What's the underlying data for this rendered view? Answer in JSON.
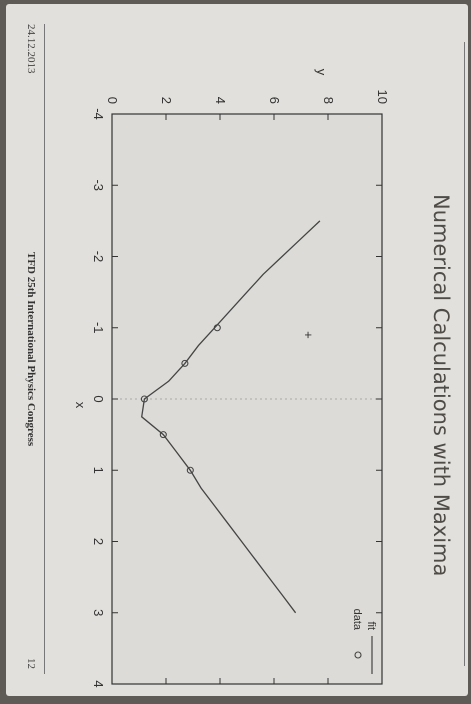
{
  "slide": {
    "title": "Numerical Calculations with Maxima",
    "footer_date": "24.12.2013",
    "footer_center": "TFD 25th International Physics Congress",
    "page_number": "12"
  },
  "chart_data": {
    "type": "scatter",
    "title": "",
    "xlabel": "x",
    "ylabel": "y",
    "xlim": [
      -4,
      4
    ],
    "ylim": [
      0,
      10
    ],
    "x_ticks": [
      "-4",
      "-3",
      "-2",
      "-1",
      "0",
      "1",
      "2",
      "3",
      "4"
    ],
    "y_ticks": [
      "0",
      "2",
      "4",
      "6",
      "8",
      "10"
    ],
    "legend_position": "top-right",
    "series": [
      {
        "name": "fit",
        "kind": "line",
        "x": [
          -2.5,
          -2.25,
          -2.0,
          -1.75,
          -1.5,
          -1.25,
          -1.0,
          -0.75,
          -0.5,
          -0.25,
          0.0,
          0.25,
          0.5,
          0.75,
          1.0,
          1.25,
          1.5,
          1.75,
          2.0,
          2.25,
          2.5,
          2.75,
          3.0
        ],
        "y": [
          7.7,
          7.0,
          6.3,
          5.6,
          5.0,
          4.4,
          3.8,
          3.2,
          2.7,
          2.1,
          1.2,
          1.1,
          1.9,
          2.4,
          2.9,
          3.3,
          3.8,
          4.3,
          4.8,
          5.3,
          5.8,
          6.3,
          6.8
        ]
      },
      {
        "name": "data",
        "kind": "points",
        "x": [
          -1.0,
          -0.5,
          0.0,
          0.5,
          1.0
        ],
        "y": [
          3.9,
          2.7,
          1.2,
          1.9,
          2.9
        ]
      }
    ],
    "annotations": [
      {
        "text": "+",
        "x": -0.9,
        "y": 7.3
      }
    ]
  }
}
